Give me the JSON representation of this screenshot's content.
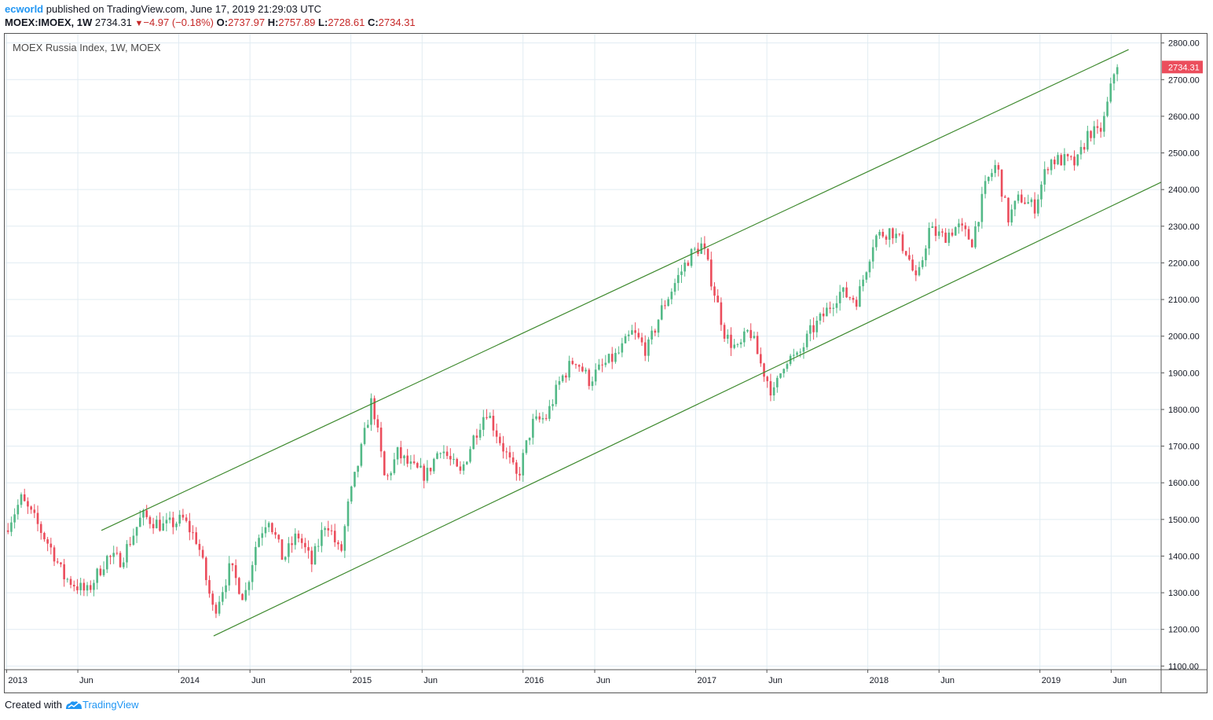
{
  "header": {
    "username": "ecworld",
    "published_text": "published on TradingView.com, June 17, 2019 21:29:03 UTC",
    "symbol": "MOEX:IMOEX, 1W",
    "last": "2734.31",
    "change": "−4.97 (−0.18%)",
    "open_label": "O:",
    "open": "2737.97",
    "high_label": "H:",
    "high": "2757.89",
    "low_label": "L:",
    "low": "2728.61",
    "close_label": "C:",
    "close": "2734.31"
  },
  "footer": {
    "created_with": "Created with",
    "brand": "TradingView",
    "logo_icon": "tradingview-logo-icon"
  },
  "colors": {
    "up": "#53b987",
    "down": "#eb4d5c",
    "channel": "#3f8a2f",
    "grid": "#e1ecf2",
    "price_tag": "#eb4d5c"
  },
  "chart_data": {
    "type": "candlestick",
    "title": "MOEX Russia Index, 1W, MOEX",
    "ylim": [
      1090,
      2825
    ],
    "xlim": [
      "2012-12-28",
      "2019-09-15"
    ],
    "y_ticks": [
      "1100.00",
      "1200.00",
      "1300.00",
      "1400.00",
      "1500.00",
      "1600.00",
      "1700.00",
      "1800.00",
      "1900.00",
      "2000.00",
      "2100.00",
      "2200.00",
      "2300.00",
      "2400.00",
      "2500.00",
      "2600.00",
      "2700.00",
      "2800.00"
    ],
    "x_ticks": [
      {
        "date": "2013-01-01",
        "label": "2013"
      },
      {
        "date": "2013-06-01",
        "label": "Jun"
      },
      {
        "date": "2014-01-01",
        "label": "2014"
      },
      {
        "date": "2014-06-01",
        "label": "Jun"
      },
      {
        "date": "2015-01-01",
        "label": "2015"
      },
      {
        "date": "2015-06-01",
        "label": "Jun"
      },
      {
        "date": "2016-01-01",
        "label": "2016"
      },
      {
        "date": "2016-06-01",
        "label": "Jun"
      },
      {
        "date": "2017-01-01",
        "label": "2017"
      },
      {
        "date": "2017-06-01",
        "label": "Jun"
      },
      {
        "date": "2018-01-01",
        "label": "2018"
      },
      {
        "date": "2018-06-01",
        "label": "Jun"
      },
      {
        "date": "2019-01-01",
        "label": "2019"
      },
      {
        "date": "2019-06-01",
        "label": "Jun"
      }
    ],
    "last_price_label": "2734.31",
    "channel_lines": [
      {
        "name": "upper",
        "from": {
          "date": "2013-07-21",
          "value": 1470
        },
        "to": {
          "date": "2019-07-08",
          "value": 2782
        }
      },
      {
        "name": "lower",
        "from": {
          "date": "2014-03-16",
          "value": 1182
        },
        "to": {
          "date": "2019-09-15",
          "value": 2420
        }
      }
    ],
    "close_path": [
      {
        "date": "2012-12-28",
        "value": 1470
      },
      {
        "date": "2013-02-01",
        "value": 1555
      },
      {
        "date": "2013-03-01",
        "value": 1500
      },
      {
        "date": "2013-04-10",
        "value": 1410
      },
      {
        "date": "2013-05-01",
        "value": 1345
      },
      {
        "date": "2013-06-20",
        "value": 1300
      },
      {
        "date": "2013-08-01",
        "value": 1395
      },
      {
        "date": "2013-09-01",
        "value": 1390
      },
      {
        "date": "2013-10-15",
        "value": 1510
      },
      {
        "date": "2013-12-01",
        "value": 1480
      },
      {
        "date": "2014-01-10",
        "value": 1500
      },
      {
        "date": "2014-02-10",
        "value": 1440
      },
      {
        "date": "2014-03-16",
        "value": 1245
      },
      {
        "date": "2014-04-20",
        "value": 1370
      },
      {
        "date": "2014-05-20",
        "value": 1285
      },
      {
        "date": "2014-06-15",
        "value": 1440
      },
      {
        "date": "2014-07-10",
        "value": 1510
      },
      {
        "date": "2014-08-10",
        "value": 1390
      },
      {
        "date": "2014-09-10",
        "value": 1460
      },
      {
        "date": "2014-10-10",
        "value": 1380
      },
      {
        "date": "2014-11-10",
        "value": 1500
      },
      {
        "date": "2014-12-10",
        "value": 1400
      },
      {
        "date": "2014-12-25",
        "value": 1530
      },
      {
        "date": "2015-01-25",
        "value": 1700
      },
      {
        "date": "2015-02-15",
        "value": 1830
      },
      {
        "date": "2015-03-15",
        "value": 1600
      },
      {
        "date": "2015-04-10",
        "value": 1680
      },
      {
        "date": "2015-05-10",
        "value": 1640
      },
      {
        "date": "2015-06-10",
        "value": 1620
      },
      {
        "date": "2015-07-10",
        "value": 1700
      },
      {
        "date": "2015-08-20",
        "value": 1620
      },
      {
        "date": "2015-09-20",
        "value": 1730
      },
      {
        "date": "2015-10-15",
        "value": 1800
      },
      {
        "date": "2015-11-15",
        "value": 1710
      },
      {
        "date": "2015-12-20",
        "value": 1610
      },
      {
        "date": "2016-01-20",
        "value": 1760
      },
      {
        "date": "2016-02-20",
        "value": 1780
      },
      {
        "date": "2016-03-20",
        "value": 1880
      },
      {
        "date": "2016-04-20",
        "value": 1940
      },
      {
        "date": "2016-05-20",
        "value": 1880
      },
      {
        "date": "2016-06-20",
        "value": 1920
      },
      {
        "date": "2016-07-20",
        "value": 1950
      },
      {
        "date": "2016-08-20",
        "value": 2010
      },
      {
        "date": "2016-09-20",
        "value": 1960
      },
      {
        "date": "2016-10-20",
        "value": 2070
      },
      {
        "date": "2016-11-20",
        "value": 2150
      },
      {
        "date": "2016-12-20",
        "value": 2220
      },
      {
        "date": "2017-01-15",
        "value": 2250
      },
      {
        "date": "2017-02-10",
        "value": 2120
      },
      {
        "date": "2017-03-05",
        "value": 2000
      },
      {
        "date": "2017-04-01",
        "value": 1960
      },
      {
        "date": "2017-04-25",
        "value": 2020
      },
      {
        "date": "2017-05-20",
        "value": 1920
      },
      {
        "date": "2017-06-15",
        "value": 1840
      },
      {
        "date": "2017-07-10",
        "value": 1940
      },
      {
        "date": "2017-08-05",
        "value": 1940
      },
      {
        "date": "2017-09-01",
        "value": 2010
      },
      {
        "date": "2017-10-01",
        "value": 2060
      },
      {
        "date": "2017-11-01",
        "value": 2120
      },
      {
        "date": "2017-12-10",
        "value": 2100
      },
      {
        "date": "2018-01-15",
        "value": 2270
      },
      {
        "date": "2018-02-20",
        "value": 2290
      },
      {
        "date": "2018-03-25",
        "value": 2230
      },
      {
        "date": "2018-04-15",
        "value": 2140
      },
      {
        "date": "2018-05-10",
        "value": 2290
      },
      {
        "date": "2018-06-10",
        "value": 2270
      },
      {
        "date": "2018-07-10",
        "value": 2300
      },
      {
        "date": "2018-08-10",
        "value": 2260
      },
      {
        "date": "2018-09-10",
        "value": 2420
      },
      {
        "date": "2018-10-01",
        "value": 2470
      },
      {
        "date": "2018-10-25",
        "value": 2320
      },
      {
        "date": "2018-11-20",
        "value": 2380
      },
      {
        "date": "2018-12-20",
        "value": 2350
      },
      {
        "date": "2019-01-20",
        "value": 2480
      },
      {
        "date": "2019-02-20",
        "value": 2480
      },
      {
        "date": "2019-03-20",
        "value": 2470
      },
      {
        "date": "2019-04-15",
        "value": 2560
      },
      {
        "date": "2019-05-05",
        "value": 2550
      },
      {
        "date": "2019-05-15",
        "value": 2580
      },
      {
        "date": "2019-05-29",
        "value": 2660
      },
      {
        "date": "2019-06-10",
        "value": 2740
      },
      {
        "date": "2019-06-17",
        "value": 2734
      }
    ]
  }
}
